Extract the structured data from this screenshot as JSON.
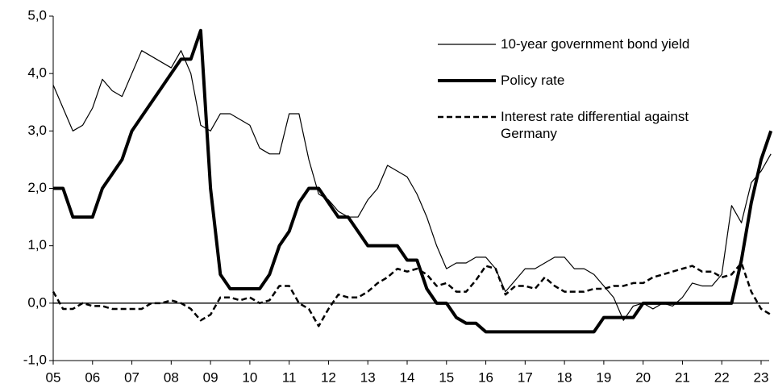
{
  "chart_data": {
    "type": "line",
    "x": [
      2005,
      2005.25,
      2005.5,
      2005.75,
      2006,
      2006.25,
      2006.5,
      2006.75,
      2007,
      2007.25,
      2007.5,
      2007.75,
      2008,
      2008.25,
      2008.5,
      2008.75,
      2009,
      2009.25,
      2009.5,
      2009.75,
      2010,
      2010.25,
      2010.5,
      2010.75,
      2011,
      2011.25,
      2011.5,
      2011.75,
      2012,
      2012.25,
      2012.5,
      2012.75,
      2013,
      2013.25,
      2013.5,
      2013.75,
      2014,
      2014.25,
      2014.5,
      2014.75,
      2015,
      2015.25,
      2015.5,
      2015.75,
      2016,
      2016.25,
      2016.5,
      2016.75,
      2017,
      2017.25,
      2017.5,
      2017.75,
      2018,
      2018.25,
      2018.5,
      2018.75,
      2019,
      2019.25,
      2019.5,
      2019.75,
      2020,
      2020.25,
      2020.5,
      2020.75,
      2021,
      2021.25,
      2021.5,
      2021.75,
      2022,
      2022.25,
      2022.5,
      2022.75,
      2023,
      2023.25
    ],
    "series": [
      {
        "name": "10-year government bond yield",
        "color": "#000000",
        "width": 1.2,
        "style": "solid",
        "values": [
          3.8,
          3.4,
          3.0,
          3.1,
          3.4,
          3.9,
          3.7,
          3.6,
          4.0,
          4.4,
          4.3,
          4.2,
          4.1,
          4.4,
          4.0,
          3.1,
          3.0,
          3.3,
          3.3,
          3.2,
          3.1,
          2.7,
          2.6,
          2.6,
          3.3,
          3.3,
          2.5,
          1.9,
          1.8,
          1.6,
          1.5,
          1.5,
          1.8,
          2.0,
          2.4,
          2.3,
          2.2,
          1.9,
          1.5,
          1.0,
          0.6,
          0.7,
          0.7,
          0.8,
          0.8,
          0.6,
          0.2,
          0.4,
          0.6,
          0.6,
          0.7,
          0.8,
          0.8,
          0.6,
          0.6,
          0.5,
          0.3,
          0.1,
          -0.3,
          -0.05,
          0.0,
          -0.1,
          0.0,
          -0.05,
          0.1,
          0.35,
          0.3,
          0.3,
          0.5,
          1.7,
          1.4,
          2.1,
          2.3,
          2.6
        ]
      },
      {
        "name": "Policy rate",
        "color": "#000000",
        "width": 4,
        "style": "solid",
        "values": [
          2.0,
          2.0,
          1.5,
          1.5,
          1.5,
          2.0,
          2.25,
          2.5,
          3.0,
          3.25,
          3.5,
          3.75,
          4.0,
          4.25,
          4.25,
          4.75,
          2.0,
          0.5,
          0.25,
          0.25,
          0.25,
          0.25,
          0.5,
          1.0,
          1.25,
          1.75,
          2.0,
          2.0,
          1.75,
          1.5,
          1.5,
          1.25,
          1.0,
          1.0,
          1.0,
          1.0,
          0.75,
          0.75,
          0.25,
          0.0,
          0.0,
          -0.25,
          -0.35,
          -0.35,
          -0.5,
          -0.5,
          -0.5,
          -0.5,
          -0.5,
          -0.5,
          -0.5,
          -0.5,
          -0.5,
          -0.5,
          -0.5,
          -0.5,
          -0.25,
          -0.25,
          -0.25,
          -0.25,
          0.0,
          0.0,
          0.0,
          0.0,
          0.0,
          0.0,
          0.0,
          0.0,
          0.0,
          0.0,
          0.75,
          1.75,
          2.5,
          3.0
        ]
      },
      {
        "name": "Interest rate differential against Germany",
        "color": "#000000",
        "width": 2.5,
        "style": "dashed",
        "values": [
          0.2,
          -0.1,
          -0.1,
          0.0,
          -0.05,
          -0.05,
          -0.1,
          -0.1,
          -0.1,
          -0.1,
          0.0,
          0.0,
          0.05,
          0.0,
          -0.1,
          -0.3,
          -0.2,
          0.1,
          0.1,
          0.05,
          0.1,
          0.0,
          0.05,
          0.3,
          0.3,
          0.0,
          -0.1,
          -0.4,
          -0.1,
          0.15,
          0.1,
          0.1,
          0.2,
          0.35,
          0.45,
          0.6,
          0.55,
          0.6,
          0.5,
          0.3,
          0.35,
          0.2,
          0.2,
          0.4,
          0.65,
          0.6,
          0.15,
          0.3,
          0.3,
          0.25,
          0.45,
          0.3,
          0.2,
          0.2,
          0.2,
          0.25,
          0.25,
          0.3,
          0.3,
          0.35,
          0.35,
          0.45,
          0.5,
          0.55,
          0.6,
          0.65,
          0.55,
          0.55,
          0.45,
          0.5,
          0.7,
          0.2,
          -0.1,
          -0.2
        ]
      }
    ],
    "xlim": [
      2005,
      2023
    ],
    "xticks": [
      {
        "value": 2005,
        "label": "05"
      },
      {
        "value": 2006,
        "label": "06"
      },
      {
        "value": 2007,
        "label": "07"
      },
      {
        "value": 2008,
        "label": "08"
      },
      {
        "value": 2009,
        "label": "09"
      },
      {
        "value": 2010,
        "label": "10"
      },
      {
        "value": 2011,
        "label": "11"
      },
      {
        "value": 2012,
        "label": "12"
      },
      {
        "value": 2013,
        "label": "13"
      },
      {
        "value": 2014,
        "label": "14"
      },
      {
        "value": 2015,
        "label": "15"
      },
      {
        "value": 2016,
        "label": "16"
      },
      {
        "value": 2017,
        "label": "17"
      },
      {
        "value": 2018,
        "label": "18"
      },
      {
        "value": 2019,
        "label": "19"
      },
      {
        "value": 2020,
        "label": "20"
      },
      {
        "value": 2021,
        "label": "21"
      },
      {
        "value": 2022,
        "label": "22"
      },
      {
        "value": 2023,
        "label": "23"
      }
    ],
    "ylim": [
      -1,
      5
    ],
    "yticks": [
      {
        "value": -1,
        "label": "-1,0"
      },
      {
        "value": 0,
        "label": "0,0"
      },
      {
        "value": 1,
        "label": "1,0"
      },
      {
        "value": 2,
        "label": "2,0"
      },
      {
        "value": 3,
        "label": "3,0"
      },
      {
        "value": 4,
        "label": "4,0"
      },
      {
        "value": 5,
        "label": "5,0"
      }
    ]
  }
}
